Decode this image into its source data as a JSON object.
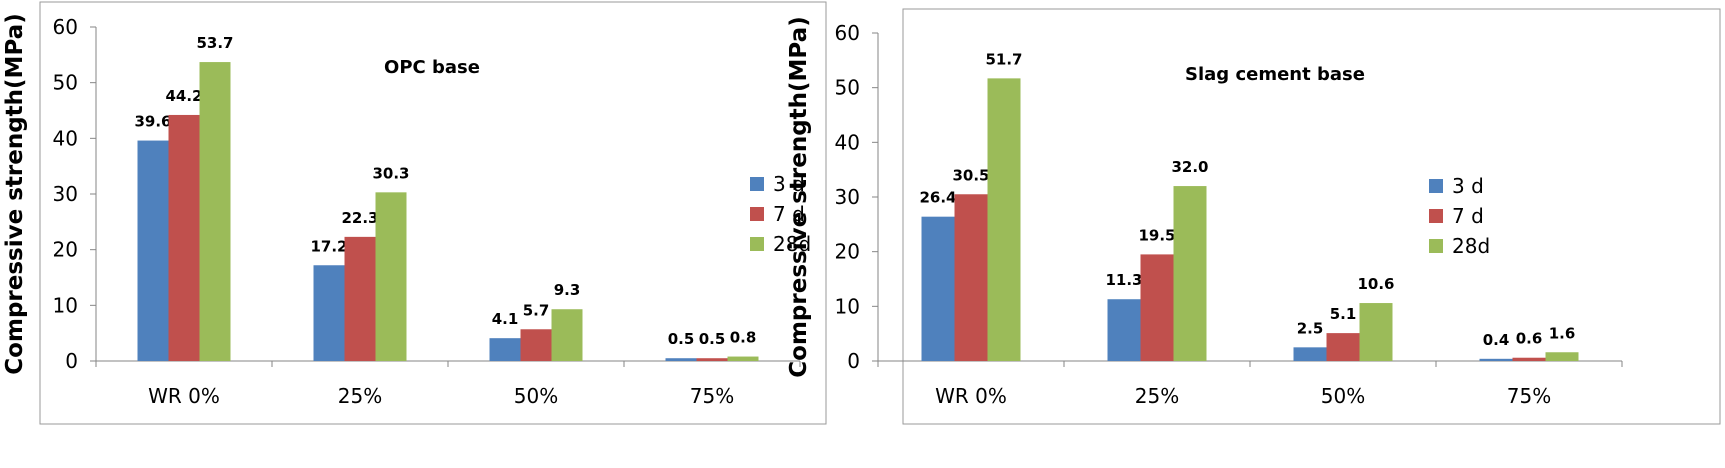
{
  "chart_data": [
    {
      "type": "bar",
      "title": "OPC base",
      "ylabel": "Compressive strength(MPa)",
      "xlabel": "",
      "ylim": [
        0,
        60
      ],
      "yticks": [
        "0",
        "10",
        "20",
        "30",
        "40",
        "50",
        "60"
      ],
      "categories": [
        "WR 0%",
        "25%",
        "50%",
        "75%"
      ],
      "series": [
        {
          "name": "3 d",
          "color": "#4f81bd",
          "values": [
            39.6,
            17.2,
            4.1,
            0.5
          ],
          "labels": [
            "39.6",
            "17.2",
            "4.1",
            "0.5"
          ]
        },
        {
          "name": "7 d",
          "color": "#c0504d",
          "values": [
            44.2,
            22.3,
            5.7,
            0.5
          ],
          "labels": [
            "44.2",
            "22.3",
            "5.7",
            "0.5"
          ]
        },
        {
          "name": "28d",
          "color": "#9bbb59",
          "values": [
            53.7,
            30.3,
            9.3,
            0.8
          ],
          "labels": [
            "53.7",
            "30.3",
            "9.3",
            "0.8"
          ]
        }
      ],
      "legend": "right",
      "grid": false
    },
    {
      "type": "bar",
      "title": "Slag cement base",
      "ylabel": "Compressive strength(MPa)",
      "xlabel": "",
      "ylim": [
        0,
        60
      ],
      "yticks": [
        "0",
        "10",
        "20",
        "30",
        "40",
        "50",
        "60"
      ],
      "categories": [
        "WR 0%",
        "25%",
        "50%",
        "75%"
      ],
      "series": [
        {
          "name": "3 d",
          "color": "#4f81bd",
          "values": [
            26.4,
            11.3,
            2.5,
            0.4
          ],
          "labels": [
            "26.4",
            "11.3",
            "2.5",
            "0.4"
          ]
        },
        {
          "name": "7 d",
          "color": "#c0504d",
          "values": [
            30.5,
            19.5,
            5.1,
            0.6
          ],
          "labels": [
            "30.5",
            "19.5",
            "5.1",
            "0.6"
          ]
        },
        {
          "name": "28d",
          "color": "#9bbb59",
          "values": [
            51.7,
            32.0,
            10.6,
            1.6
          ],
          "labels": [
            "51.7",
            "32.0",
            "10.6",
            "1.6"
          ]
        }
      ],
      "legend": "right",
      "grid": false
    }
  ]
}
